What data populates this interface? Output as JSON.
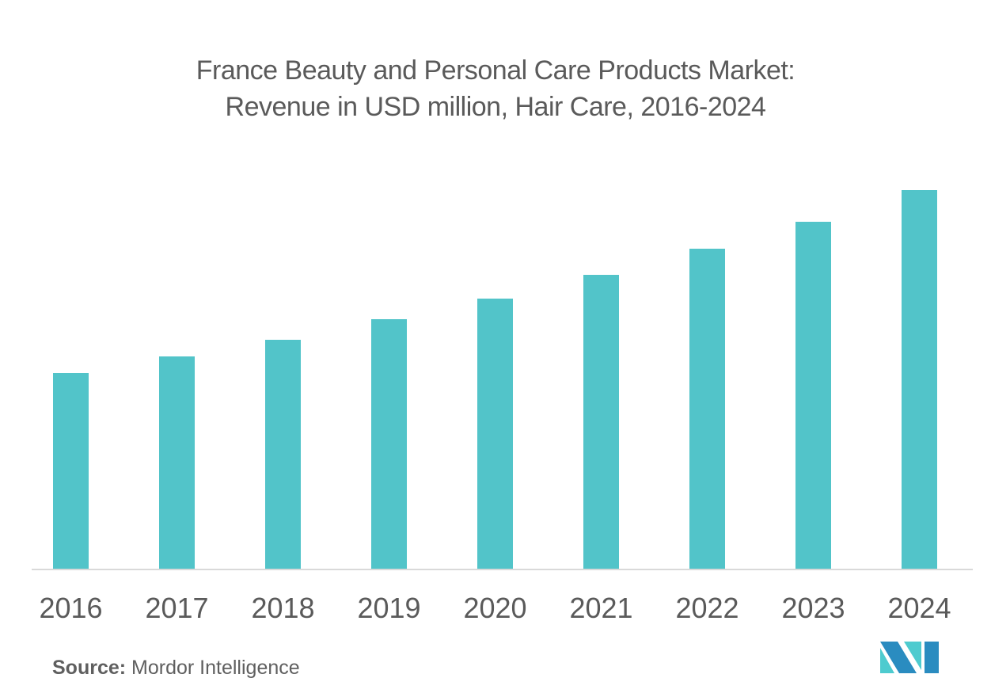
{
  "chart_data": {
    "type": "bar",
    "title": "France Beauty and Personal Care Products Market:",
    "subtitle": "Revenue in USD million, Hair Care, 2016-2024",
    "xlabel": "",
    "ylabel": "",
    "categories": [
      "2016",
      "2017",
      "2018",
      "2019",
      "2020",
      "2021",
      "2022",
      "2023",
      "2024"
    ],
    "values": [
      247,
      268,
      289,
      315,
      341,
      371,
      404,
      438,
      478
    ],
    "value_units": "relative (no y-axis shown)",
    "ylim": [
      0,
      500
    ],
    "grid": false,
    "legend": "none",
    "bar_color": "#52c4c9",
    "axis_color": "#d9d9d9"
  },
  "source": {
    "label": "Source:",
    "text": "Mordor Intelligence"
  },
  "logo": {
    "colors": [
      "#2a8cc0",
      "#4ecbcf"
    ]
  }
}
